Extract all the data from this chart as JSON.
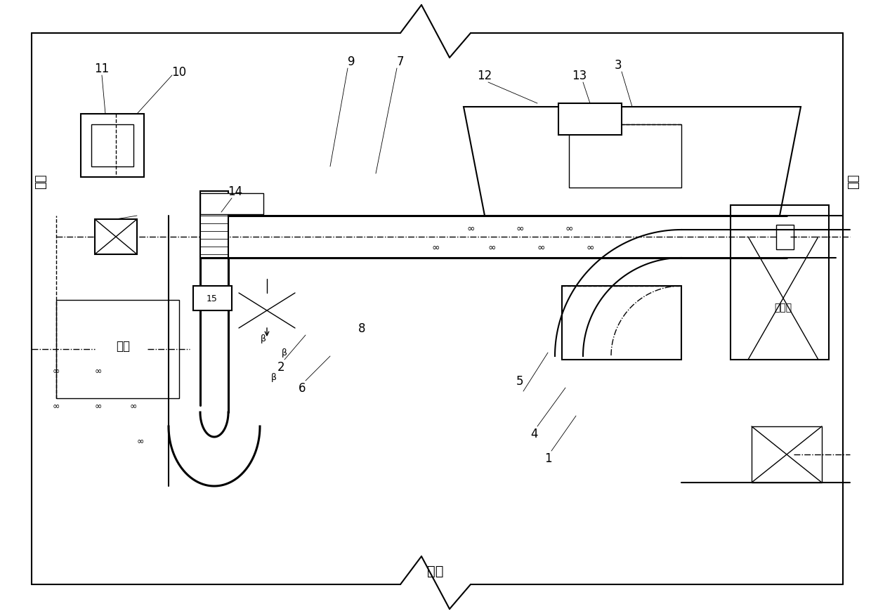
{
  "bg_color": "#ffffff",
  "line_color": "#000000",
  "labels": {
    "downstream": "下游",
    "upstream": "上游",
    "dam": "水坠",
    "corridor": "廊道",
    "valve_room": "阀门室"
  },
  "fig_width": 12.4,
  "fig_height": 8.78,
  "dpi": 100,
  "xmin": 0,
  "xmax": 124,
  "ymin": 0,
  "ymax": 87.8
}
